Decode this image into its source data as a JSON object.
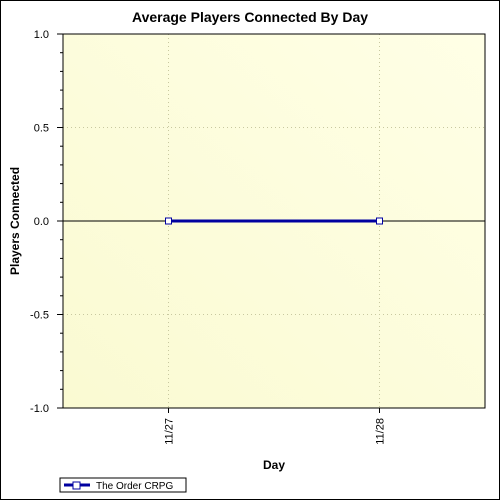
{
  "chart_data": {
    "type": "line",
    "title": "Average Players Connected By Day",
    "xlabel": "Day",
    "ylabel": "Players Connected",
    "categories": [
      "11/27",
      "11/28"
    ],
    "series": [
      {
        "name": "The Order CRPG",
        "values": [
          0,
          0
        ],
        "color": "#0000a0",
        "marker": "square"
      }
    ],
    "ylim": [
      -1.0,
      1.0
    ],
    "yticks": [
      "1.0",
      "0.5",
      "0.0",
      "-0.5",
      "-1.0"
    ],
    "ytick_values": [
      1.0,
      0.5,
      0.0,
      -0.5,
      -1.0
    ],
    "grid": true,
    "legend_position": "bottom-left",
    "plot_background": [
      "#fafad2",
      "#ffffe0"
    ]
  }
}
